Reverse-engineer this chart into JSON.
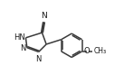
{
  "bg_color": "#ffffff",
  "line_color": "#3a3a3a",
  "text_color": "#1a1a1a",
  "line_width": 1.1,
  "font_size": 6.0,
  "figsize": [
    1.37,
    0.83
  ],
  "dpi": 100,
  "xlim": [
    0,
    10
  ],
  "ylim": [
    0,
    6.5
  ]
}
